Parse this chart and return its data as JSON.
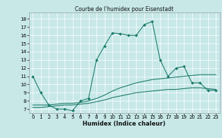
{
  "title": "Courbe de l'humidex pour Eisenstadt",
  "xlabel": "Humidex (Indice chaleur)",
  "bg_color": "#c8e8e8",
  "line_color": "#1a7a6a",
  "xlim": [
    -0.5,
    23.5
  ],
  "ylim": [
    6.5,
    18.8
  ],
  "xticks": [
    0,
    1,
    2,
    3,
    4,
    5,
    6,
    7,
    8,
    9,
    10,
    11,
    12,
    13,
    14,
    15,
    16,
    17,
    18,
    19,
    20,
    21,
    22,
    23
  ],
  "yticks": [
    7,
    8,
    9,
    10,
    11,
    12,
    13,
    14,
    15,
    16,
    17,
    18
  ],
  "line1_x": [
    0,
    1,
    2,
    3,
    4,
    5,
    6,
    7,
    8,
    9,
    10,
    11,
    12,
    13,
    14,
    15,
    16,
    17,
    18,
    19,
    20,
    21,
    22,
    23
  ],
  "line1_y": [
    11.0,
    9.0,
    7.5,
    7.0,
    7.0,
    6.8,
    8.0,
    8.3,
    13.0,
    14.7,
    16.3,
    16.2,
    16.0,
    16.0,
    17.3,
    17.7,
    13.0,
    11.0,
    12.0,
    12.2,
    10.2,
    10.2,
    9.3,
    9.3
  ],
  "line2_x": [
    0,
    1,
    2,
    3,
    4,
    5,
    6,
    7,
    8,
    9,
    10,
    11,
    12,
    13,
    14,
    15,
    16,
    17,
    18,
    19,
    20,
    21,
    22,
    23
  ],
  "line2_y": [
    7.5,
    7.5,
    7.5,
    7.6,
    7.7,
    7.7,
    7.8,
    8.0,
    8.3,
    8.7,
    9.2,
    9.6,
    9.9,
    10.2,
    10.4,
    10.6,
    10.7,
    10.8,
    10.9,
    11.0,
    11.1,
    11.2,
    11.2,
    11.2
  ],
  "line3_x": [
    0,
    1,
    2,
    3,
    4,
    5,
    6,
    7,
    8,
    9,
    10,
    11,
    12,
    13,
    14,
    15,
    16,
    17,
    18,
    19,
    20,
    21,
    22,
    23
  ],
  "line3_y": [
    7.2,
    7.2,
    7.3,
    7.4,
    7.5,
    7.5,
    7.6,
    7.7,
    7.9,
    8.1,
    8.4,
    8.6,
    8.8,
    9.0,
    9.1,
    9.2,
    9.3,
    9.4,
    9.4,
    9.5,
    9.6,
    9.6,
    9.5,
    9.4
  ],
  "title_fontsize": 5.5,
  "xlabel_fontsize": 6.0,
  "tick_fontsize": 5.0
}
